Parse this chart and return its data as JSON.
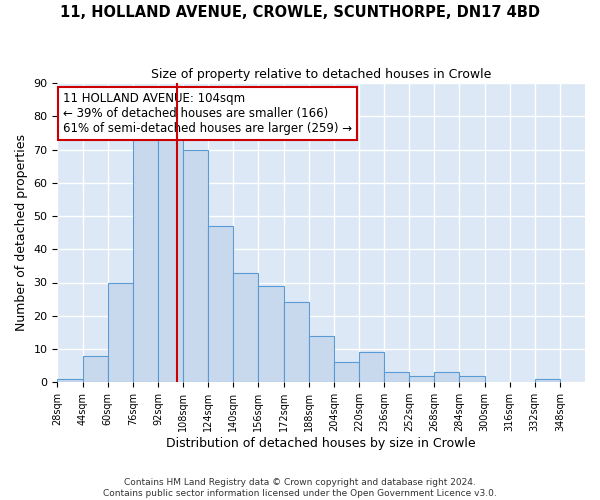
{
  "title": "11, HOLLAND AVENUE, CROWLE, SCUNTHORPE, DN17 4BD",
  "subtitle": "Size of property relative to detached houses in Crowle",
  "xlabel": "Distribution of detached houses by size in Crowle",
  "ylabel": "Number of detached properties",
  "bin_edges": [
    28,
    44,
    60,
    76,
    92,
    108,
    124,
    140,
    156,
    172,
    188,
    204,
    220,
    236,
    252,
    268,
    284,
    300,
    316,
    332,
    348
  ],
  "bar_heights": [
    1,
    8,
    30,
    73,
    74,
    70,
    47,
    33,
    29,
    24,
    14,
    6,
    9,
    3,
    2,
    3,
    2,
    0,
    0,
    1
  ],
  "tick_labels": [
    "28sqm",
    "44sqm",
    "60sqm",
    "76sqm",
    "92sqm",
    "108sqm",
    "124sqm",
    "140sqm",
    "156sqm",
    "172sqm",
    "188sqm",
    "204sqm",
    "220sqm",
    "236sqm",
    "252sqm",
    "268sqm",
    "284sqm",
    "300sqm",
    "316sqm",
    "332sqm",
    "348sqm"
  ],
  "bar_color": "#c9d9ed",
  "bar_edge_color": "#5b9bd5",
  "vline_x": 104,
  "vline_color": "#cc0000",
  "ylim": [
    0,
    90
  ],
  "yticks": [
    0,
    10,
    20,
    30,
    40,
    50,
    60,
    70,
    80,
    90
  ],
  "annotation_title": "11 HOLLAND AVENUE: 104sqm",
  "annotation_line1": "← 39% of detached houses are smaller (166)",
  "annotation_line2": "61% of semi-detached houses are larger (259) →",
  "annotation_box_color": "#ffffff",
  "annotation_box_edge": "#cc0000",
  "background_color": "#dce8f5",
  "grid_color": "#ffffff",
  "fig_bg_color": "#ffffff",
  "footer1": "Contains HM Land Registry data © Crown copyright and database right 2024.",
  "footer2": "Contains public sector information licensed under the Open Government Licence v3.0."
}
